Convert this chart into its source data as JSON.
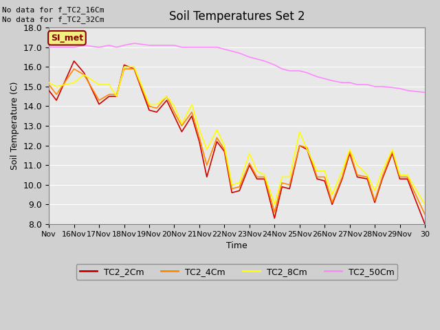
{
  "title": "Soil Temperatures Set 2",
  "xlabel": "Time",
  "ylabel": "Soil Temperature (C)",
  "ylim": [
    8.0,
    18.0
  ],
  "yticks": [
    8.0,
    9.0,
    10.0,
    11.0,
    12.0,
    13.0,
    14.0,
    15.0,
    16.0,
    17.0,
    18.0
  ],
  "no_data_text": [
    "No data for f_TC2_16Cm",
    "No data for f_TC2_32Cm"
  ],
  "si_met_label": "SI_met",
  "legend_entries": [
    "TC2_2Cm",
    "TC2_4Cm",
    "TC2_8Cm",
    "TC2_50Cm"
  ],
  "legend_colors": [
    "#cc0000",
    "#ff8800",
    "#ffff00",
    "#ff88ff"
  ],
  "xtick_positions": [
    0,
    1,
    2,
    3,
    4,
    5,
    6,
    7,
    8,
    9,
    10,
    11,
    12,
    13,
    14,
    15
  ],
  "xtick_labels": [
    "Nov",
    "16Nov",
    "17Nov",
    "18Nov",
    "19Nov",
    "20Nov",
    "21Nov",
    "22Nov",
    "23Nov",
    "24Nov",
    "25Nov",
    "26Nov",
    "27Nov",
    "28Nov",
    "29Nov",
    "30"
  ],
  "TC2_2Cm_x": [
    0,
    0.3,
    1,
    1.4,
    2,
    2.4,
    2.7,
    3,
    3.4,
    4,
    4.3,
    4.7,
    5,
    5.3,
    5.7,
    6,
    6.3,
    6.7,
    7,
    7.3,
    7.6,
    8,
    8.3,
    8.6,
    9,
    9.3,
    9.6,
    10,
    10.3,
    10.7,
    11,
    11.3,
    11.7,
    12,
    12.3,
    12.7,
    13,
    13.3,
    13.7,
    14,
    14.3,
    15
  ],
  "TC2_2Cm": [
    14.8,
    14.3,
    16.3,
    15.7,
    14.1,
    14.5,
    14.5,
    16.1,
    15.9,
    13.8,
    13.7,
    14.3,
    13.5,
    12.7,
    13.5,
    12.2,
    10.4,
    12.2,
    11.7,
    9.6,
    9.7,
    11.0,
    10.3,
    10.3,
    8.3,
    9.9,
    9.8,
    12.0,
    11.8,
    10.3,
    10.2,
    9.0,
    10.3,
    11.6,
    10.4,
    10.3,
    9.1,
    10.3,
    11.6,
    10.3,
    10.3,
    8.0
  ],
  "TC2_4Cm": [
    15.1,
    14.6,
    15.9,
    15.6,
    14.3,
    14.6,
    14.6,
    15.9,
    15.9,
    14.0,
    13.9,
    14.5,
    13.7,
    13.0,
    13.7,
    12.4,
    11.0,
    12.4,
    11.8,
    9.8,
    9.9,
    11.1,
    10.4,
    10.4,
    8.6,
    10.1,
    10.0,
    12.0,
    11.9,
    10.4,
    10.4,
    9.1,
    10.4,
    11.7,
    10.5,
    10.4,
    9.2,
    10.4,
    11.7,
    10.4,
    10.4,
    8.5
  ],
  "TC2_8Cm": [
    15.2,
    15.0,
    15.2,
    15.6,
    15.1,
    15.1,
    14.5,
    16.0,
    16.0,
    14.1,
    14.1,
    14.5,
    14.0,
    13.1,
    14.1,
    12.8,
    11.8,
    12.8,
    12.0,
    10.0,
    10.1,
    11.6,
    10.7,
    10.5,
    9.0,
    10.4,
    10.4,
    12.7,
    11.8,
    10.7,
    10.7,
    9.5,
    10.7,
    11.8,
    11.0,
    10.5,
    9.7,
    10.7,
    11.8,
    10.5,
    10.5,
    9.0
  ],
  "TC2_50Cm": [
    17.0,
    17.0,
    17.0,
    17.1,
    17.0,
    17.1,
    17.0,
    17.1,
    17.2,
    17.1,
    17.1,
    17.1,
    17.1,
    17.0,
    17.0,
    17.0,
    17.0,
    17.0,
    16.9,
    16.8,
    16.7,
    16.5,
    16.4,
    16.3,
    16.1,
    15.9,
    15.8,
    15.8,
    15.7,
    15.5,
    15.4,
    15.3,
    15.2,
    15.2,
    15.1,
    15.1,
    15.0,
    15.0,
    14.95,
    14.9,
    14.8,
    14.7
  ]
}
